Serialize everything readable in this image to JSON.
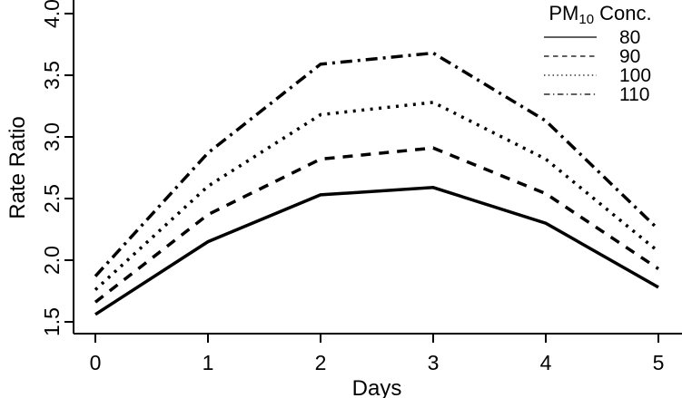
{
  "figure": {
    "background": "#ffffff",
    "foreground": "#000000"
  },
  "chart_data": {
    "type": "line",
    "title": "",
    "xlabel": "Days",
    "ylabel": "Rate Ratio",
    "x": [
      0,
      1,
      2,
      3,
      4,
      5
    ],
    "x_ticks": [
      0,
      1,
      2,
      3,
      4,
      5
    ],
    "y_ticks": [
      1.5,
      2.0,
      2.5,
      3.0,
      3.5,
      4.0
    ],
    "xlim": [
      0,
      5
    ],
    "ylim": [
      1.5,
      4.0
    ],
    "grid": false,
    "line_color": "#000000",
    "series": [
      {
        "name": "80",
        "linestyle": "solid",
        "values": [
          1.56,
          2.15,
          2.53,
          2.59,
          2.3,
          1.78
        ]
      },
      {
        "name": "90",
        "linestyle": "dashed",
        "values": [
          1.66,
          2.37,
          2.82,
          2.91,
          2.54,
          1.93
        ]
      },
      {
        "name": "100",
        "linestyle": "dotted",
        "values": [
          1.76,
          2.6,
          3.18,
          3.28,
          2.82,
          2.07
        ]
      },
      {
        "name": "110",
        "linestyle": "dashdot",
        "values": [
          1.87,
          2.87,
          3.59,
          3.68,
          3.13,
          2.25
        ]
      }
    ],
    "legend": {
      "position": "top-right",
      "title_pm": "PM",
      "title_sub": "10",
      "title_rest": " Conc.",
      "entries": [
        {
          "label": "80",
          "linestyle": "solid"
        },
        {
          "label": "90",
          "linestyle": "dashed"
        },
        {
          "label": "100",
          "linestyle": "dotted"
        },
        {
          "label": "110",
          "linestyle": "dashdot"
        }
      ]
    }
  }
}
